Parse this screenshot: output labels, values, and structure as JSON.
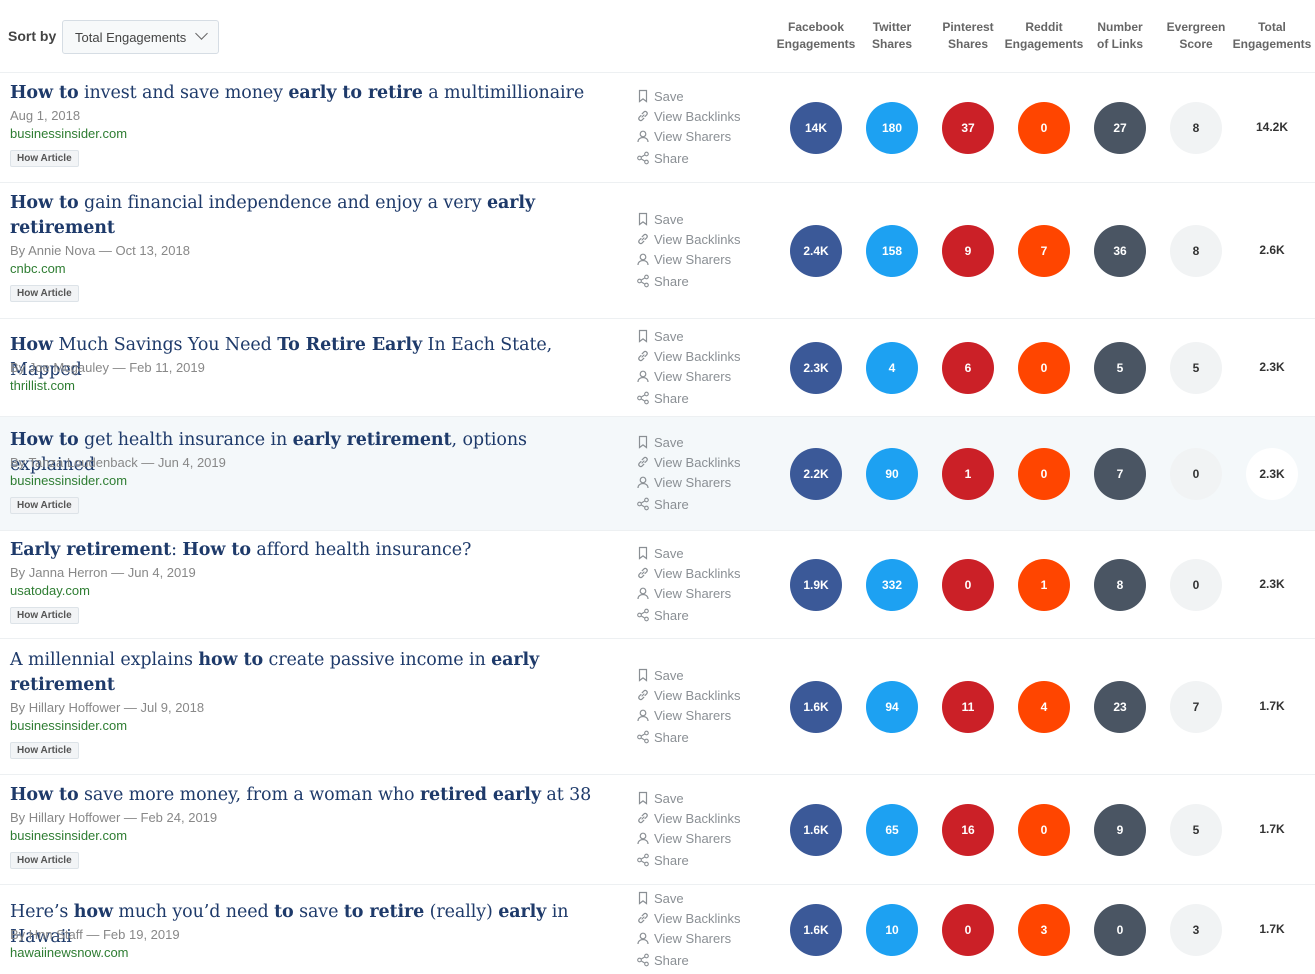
{
  "header": {
    "sort_label": "Sort by",
    "sort_value": "Total Engagements",
    "columns": [
      {
        "line1": "Facebook",
        "line2": "Engagements"
      },
      {
        "line1": "Twitter",
        "line2": "Shares"
      },
      {
        "line1": "Pinterest",
        "line2": "Shares"
      },
      {
        "line1": "Reddit",
        "line2": "Engagements"
      },
      {
        "line1": "Number",
        "line2": "of Links"
      },
      {
        "line1": "Evergreen",
        "line2": "Score"
      },
      {
        "line1": "Total",
        "line2": "Engagements"
      }
    ]
  },
  "actions": {
    "save": "Save",
    "backlinks": "View Backlinks",
    "sharers": "View Sharers",
    "share": "Share"
  },
  "colors": {
    "facebook": "#3b5998",
    "twitter": "#1da1f2",
    "pinterest": "#cb2027",
    "reddit": "#ff4500",
    "links": "#4a5563",
    "title": "#1e3a6a",
    "domain": "#2e7d32"
  },
  "articles": [
    {
      "title_html": "<b>How to</b> invest and save money <b>early to retire</b> a multimillionaire",
      "meta": "Aug 1, 2018",
      "domain": "businessinsider.com",
      "tag": "How Article",
      "stats": {
        "facebook": "14K",
        "twitter": "180",
        "pinterest": "37",
        "reddit": "0",
        "links": "27",
        "evergreen": "8",
        "total": "14.2K"
      }
    },
    {
      "title_html": "<b>How to</b> gain financial independence and enjoy a very <b>early</b><br><b>retirement</b>",
      "meta": "By Annie Nova — Oct 13, 2018",
      "domain": "cnbc.com",
      "tag": "How Article",
      "stats": {
        "facebook": "2.4K",
        "twitter": "158",
        "pinterest": "9",
        "reddit": "7",
        "links": "36",
        "evergreen": "8",
        "total": "2.6K"
      }
    },
    {
      "title_html": "<b>How</b> Much Savings You Need <b>To Retire Early</b> In Each State, Mapped",
      "meta": "By Joe Mcgauley — Feb 11, 2019",
      "domain": "thrillist.com",
      "tag": "",
      "stats": {
        "facebook": "2.3K",
        "twitter": "4",
        "pinterest": "6",
        "reddit": "0",
        "links": "5",
        "evergreen": "5",
        "total": "2.3K"
      }
    },
    {
      "title_html": "<b>How to</b> get health insurance in <b>early retirement</b>, options explained",
      "meta": "By Tanza Loudenback — Jun 4, 2019",
      "domain": "businessinsider.com",
      "tag": "How Article",
      "stats": {
        "facebook": "2.2K",
        "twitter": "90",
        "pinterest": "1",
        "reddit": "0",
        "links": "7",
        "evergreen": "0",
        "total": "2.3K"
      }
    },
    {
      "title_html": "<b>Early retirement</b>: <b>How to</b> afford health insurance?",
      "meta": "By Janna Herron — Jun 4, 2019",
      "domain": "usatoday.com",
      "tag": "How Article",
      "stats": {
        "facebook": "1.9K",
        "twitter": "332",
        "pinterest": "0",
        "reddit": "1",
        "links": "8",
        "evergreen": "0",
        "total": "2.3K"
      }
    },
    {
      "title_html": "A millennial explains <b>how to</b> create passive income in <b>early</b><br><b>retirement</b>",
      "meta": "By Hillary Hoffower — Jul 9, 2018",
      "domain": "businessinsider.com",
      "tag": "How Article",
      "stats": {
        "facebook": "1.6K",
        "twitter": "94",
        "pinterest": "11",
        "reddit": "4",
        "links": "23",
        "evergreen": "7",
        "total": "1.7K"
      }
    },
    {
      "title_html": "<b>How to</b> save more money, from a woman who <b>retired early</b> at 38",
      "meta": "By Hillary Hoffower — Feb 24, 2019",
      "domain": "businessinsider.com",
      "tag": "How Article",
      "stats": {
        "facebook": "1.6K",
        "twitter": "65",
        "pinterest": "16",
        "reddit": "0",
        "links": "9",
        "evergreen": "5",
        "total": "1.7K"
      }
    },
    {
      "title_html": "Here’s <b>how</b> much you’d need <b>to</b> save <b>to retire</b> (really) <b>early</b> in Hawaii",
      "meta": "By Hnn Staff — Feb 19, 2019",
      "domain": "hawaiinewsnow.com",
      "tag": "",
      "stats": {
        "facebook": "1.6K",
        "twitter": "10",
        "pinterest": "0",
        "reddit": "3",
        "links": "0",
        "evergreen": "3",
        "total": "1.7K"
      }
    }
  ]
}
